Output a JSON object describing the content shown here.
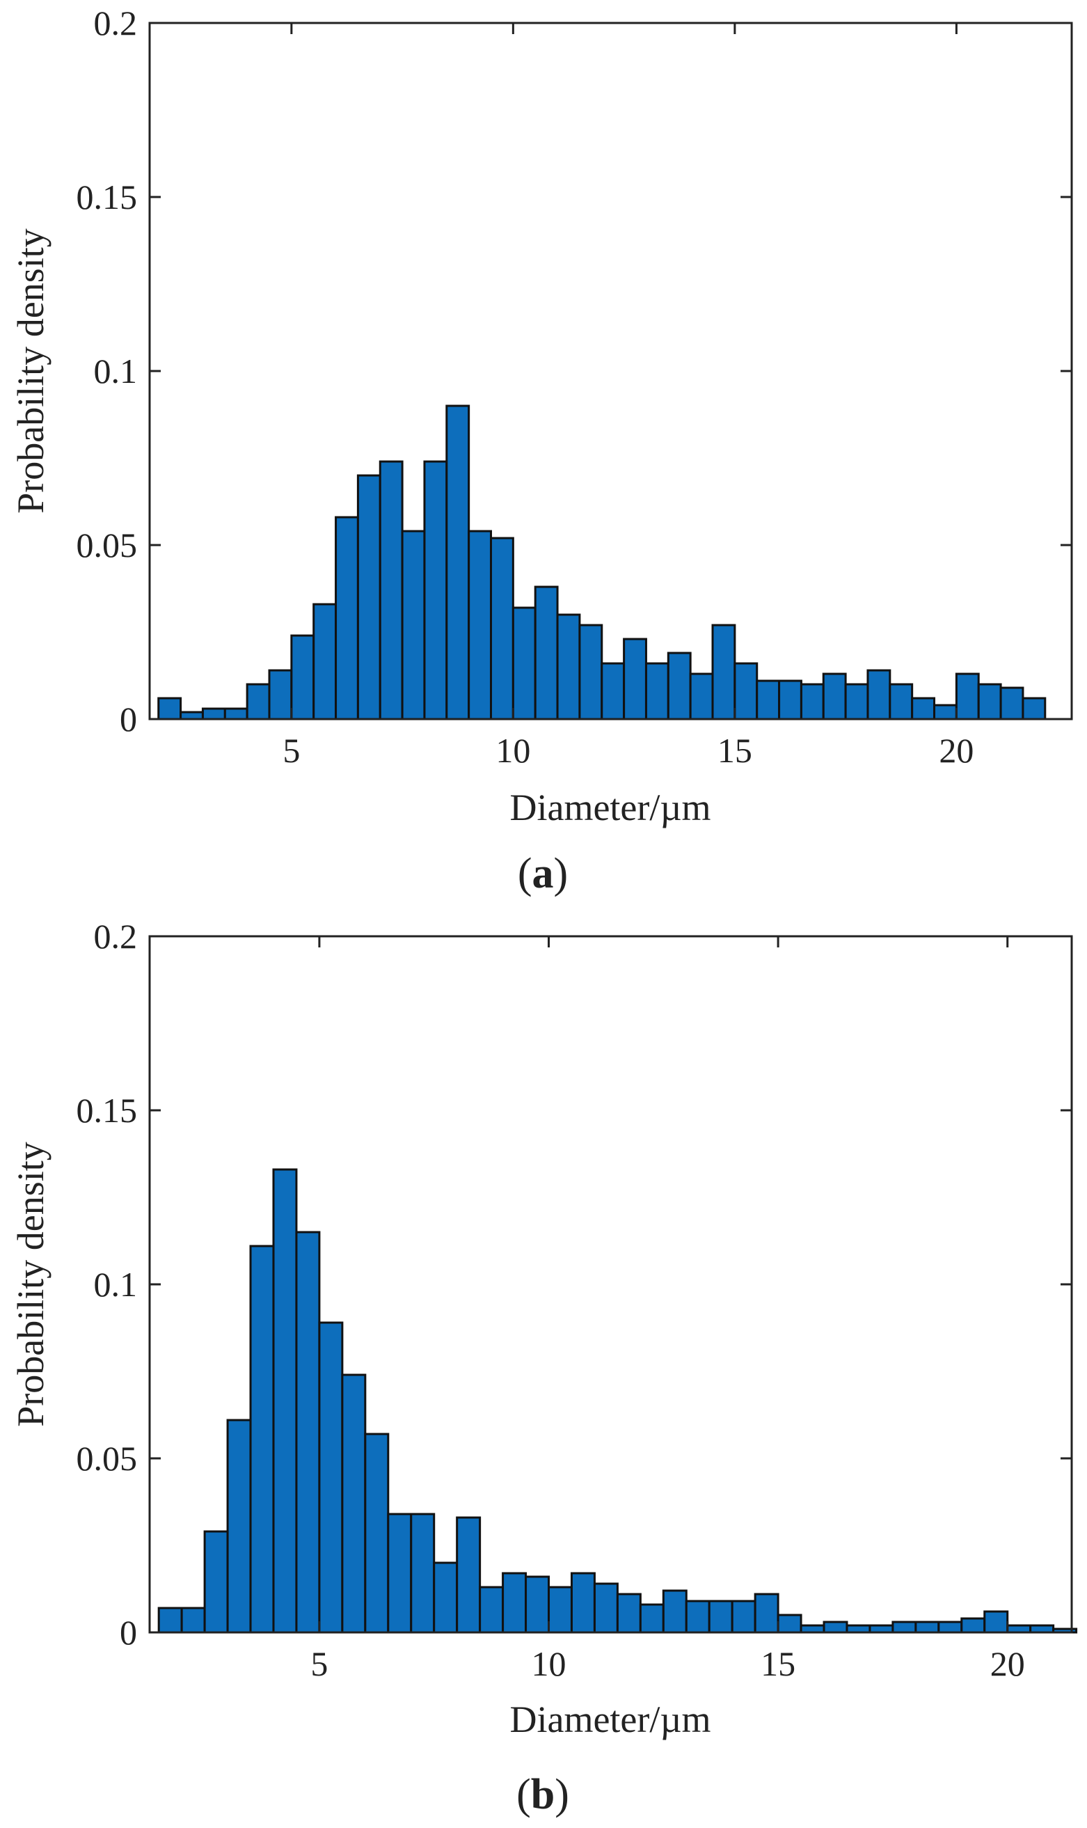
{
  "chart_data": [
    {
      "type": "bar",
      "panel_label": "a",
      "xlabel": "Diameter/µm",
      "ylabel": "Probability density",
      "ylim": [
        0,
        0.2
      ],
      "yticks": [
        "0",
        "0.05",
        "0.1",
        "0.15",
        "0.2"
      ],
      "xticks": [
        "5",
        "10",
        "15",
        "20"
      ],
      "xlim": [
        1.8,
        22.6
      ],
      "bin_start": 2.0,
      "bin_width": 0.5,
      "values": [
        0.006,
        0.002,
        0.003,
        0.003,
        0.01,
        0.014,
        0.024,
        0.033,
        0.058,
        0.07,
        0.074,
        0.054,
        0.074,
        0.09,
        0.054,
        0.052,
        0.032,
        0.038,
        0.03,
        0.027,
        0.016,
        0.023,
        0.016,
        0.019,
        0.013,
        0.027,
        0.016,
        0.011,
        0.011,
        0.01,
        0.013,
        0.01,
        0.014,
        0.01,
        0.006,
        0.004,
        0.013,
        0.01,
        0.009,
        0.006
      ]
    },
    {
      "type": "bar",
      "panel_label": "b",
      "xlabel": "Diameter/µm",
      "ylabel": "Probability density",
      "ylim": [
        0,
        0.2
      ],
      "yticks": [
        "0",
        "0.05",
        "0.1",
        "0.15",
        "0.2"
      ],
      "xticks": [
        "5",
        "10",
        "15",
        "20"
      ],
      "xlim": [
        1.3,
        21.4
      ],
      "bin_start": 1.5,
      "bin_width": 0.5,
      "values": [
        0.007,
        0.007,
        0.029,
        0.061,
        0.111,
        0.133,
        0.115,
        0.089,
        0.074,
        0.057,
        0.034,
        0.034,
        0.02,
        0.033,
        0.013,
        0.017,
        0.016,
        0.013,
        0.017,
        0.014,
        0.011,
        0.008,
        0.012,
        0.009,
        0.009,
        0.009,
        0.011,
        0.005,
        0.002,
        0.003,
        0.002,
        0.002,
        0.003,
        0.003,
        0.003,
        0.004,
        0.006,
        0.002,
        0.002,
        0.001
      ]
    }
  ]
}
